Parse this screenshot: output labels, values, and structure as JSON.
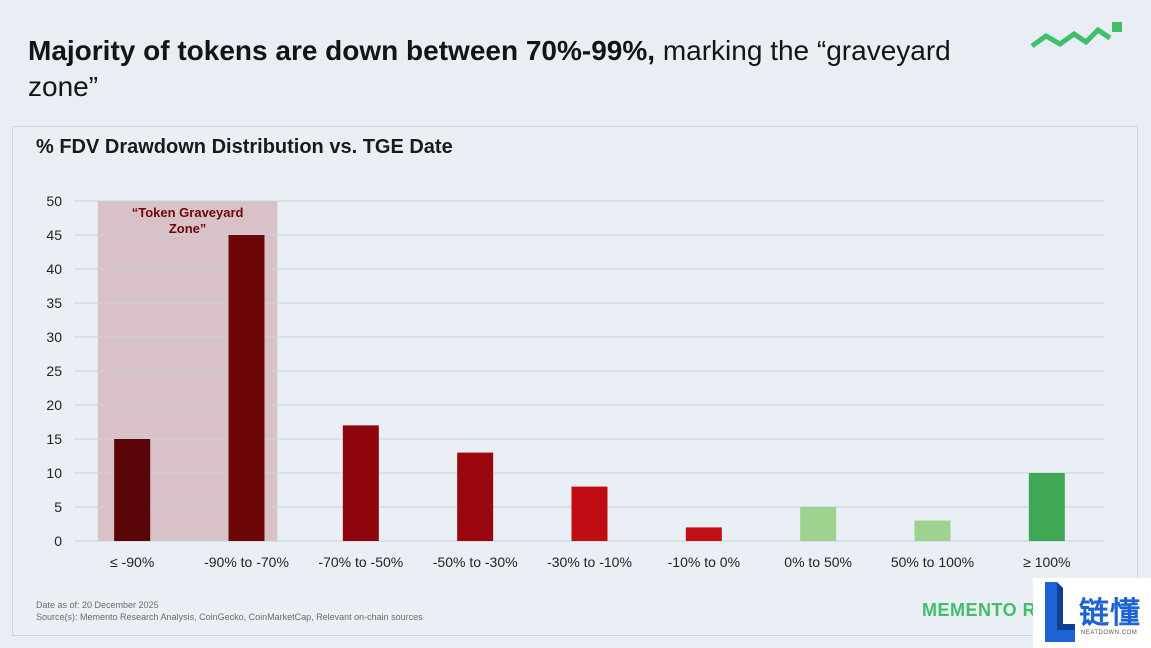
{
  "header": {
    "title_bold": "Majority of tokens are down between 70%-99%,",
    "title_rest": " marking the “graveyard zone”"
  },
  "logo": {
    "icon": "wave-chart-icon",
    "color": "#3fbf6a"
  },
  "chart_data": {
    "type": "bar",
    "title": "% FDV Drawdown Distribution vs. TGE Date",
    "categories": [
      "≤ -90%",
      "-90% to -70%",
      "-70% to -50%",
      "-50% to -30%",
      "-30% to -10%",
      "-10% to 0%",
      "0% to 50%",
      "50% to 100%",
      "≥ 100%"
    ],
    "values": [
      15,
      45,
      17,
      13,
      8,
      2,
      5,
      3,
      10
    ],
    "bar_colors": [
      "#5a0508",
      "#6d0609",
      "#8f070c",
      "#9b070e",
      "#c00d14",
      "#c21015",
      "#9dd38e",
      "#9dd38e",
      "#3fa856"
    ],
    "ylim": [
      0,
      50
    ],
    "yticks": [
      0,
      5,
      10,
      15,
      20,
      25,
      30,
      35,
      40,
      45,
      50
    ],
    "grid": true,
    "xlabel": "",
    "ylabel": "",
    "annotation": {
      "label": "“Token Graveyard Zone”",
      "span_categories": [
        "≤ -90%",
        "-90% to -70%"
      ],
      "fill": "#d9c2c7",
      "text_color": "#6d0609"
    }
  },
  "footer": {
    "date_note": "Date as of: 20 December 2025",
    "sources": "Source(s): Memento Research Analysis, CoinGecko, CoinMarketCap, Relevant on-chain sources",
    "brand": "MEMENTO R"
  },
  "watermark": {
    "chinese": "链懂",
    "url": "NEATDOWN.COM"
  }
}
